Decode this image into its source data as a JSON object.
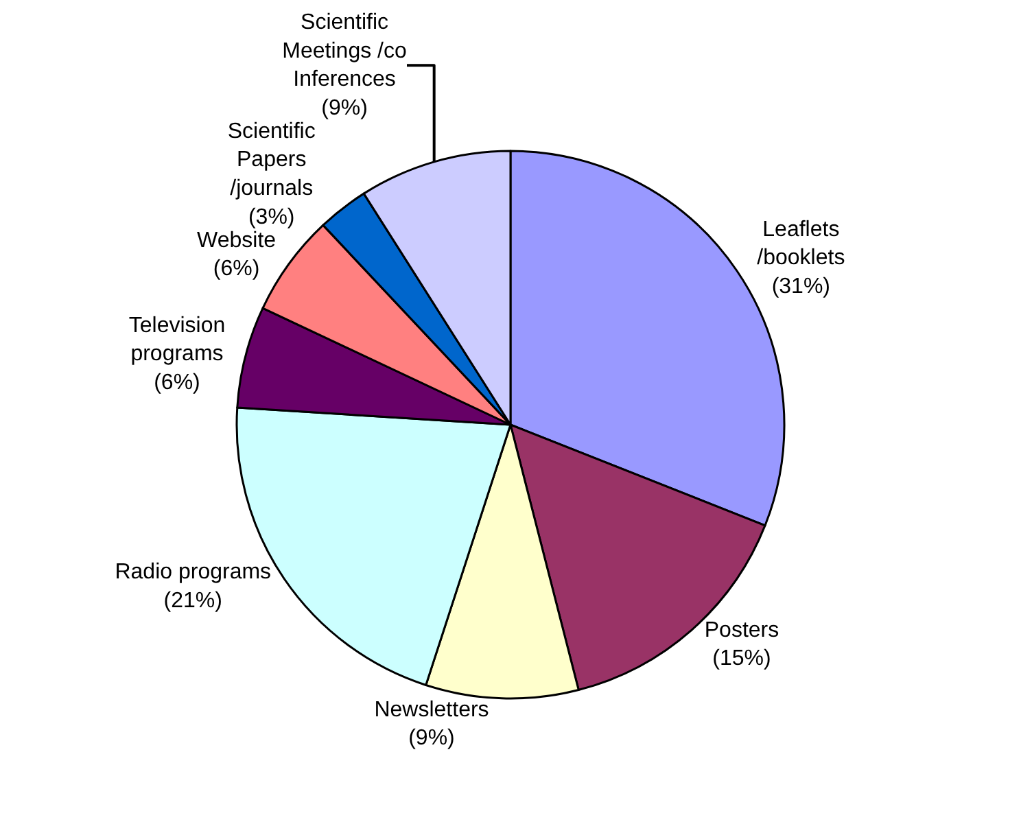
{
  "chart_data": {
    "type": "pie",
    "categories": [
      "Leaflets /booklets",
      "Posters",
      "Newsletters",
      "Radio programs",
      "Television programs",
      "Website",
      "Scientific Papers /journals",
      "Scientific Meetings /co Inferences"
    ],
    "values": [
      31,
      15,
      9,
      21,
      6,
      6,
      3,
      9
    ],
    "value_labels": [
      "(31%)",
      "(15%)",
      "(9%)",
      "(21%)",
      "(6%)",
      "(6%)",
      "(3%)",
      "(9%)"
    ],
    "colors": [
      "#9999ff",
      "#993366",
      "#ffffcc",
      "#ccffff",
      "#660066",
      "#ff8080",
      "#0066cc",
      "#ccccff"
    ],
    "legend": false
  }
}
